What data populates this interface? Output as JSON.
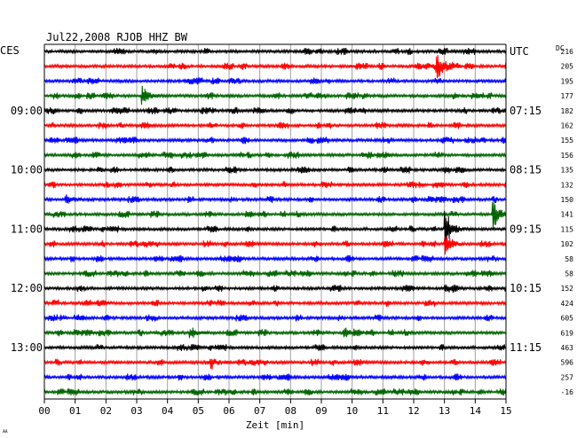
{
  "chart_data": {
    "type": "line",
    "title": "Jul22,2008   RJOB HHZ BW",
    "left_label": "CES",
    "right_label": "UTC",
    "dc_header": "DC",
    "xlabel": "Zeit [min]",
    "x_ticks": [
      "00",
      "01",
      "02",
      "03",
      "04",
      "05",
      "06",
      "07",
      "08",
      "09",
      "10",
      "11",
      "12",
      "13",
      "14",
      "15"
    ],
    "xlim": [
      0,
      15
    ],
    "left_time_labels": [
      {
        "row": 4,
        "label": "09:00"
      },
      {
        "row": 8,
        "label": "10:00"
      },
      {
        "row": 12,
        "label": "11:00"
      },
      {
        "row": 16,
        "label": "12:00"
      },
      {
        "row": 20,
        "label": "13:00"
      }
    ],
    "right_time_labels": [
      {
        "row": 0,
        "label": "UTC"
      },
      {
        "row": 4,
        "label": "07:15"
      },
      {
        "row": 8,
        "label": "08:15"
      },
      {
        "row": 12,
        "label": "09:15"
      },
      {
        "row": 16,
        "label": "10:15"
      },
      {
        "row": 20,
        "label": "11:15"
      }
    ],
    "dc_values": [
      "216",
      "205",
      "195",
      "177",
      "182",
      "162",
      "155",
      "156",
      "135",
      "132",
      "150",
      "141",
      "115",
      "102",
      "58",
      "58",
      "152",
      "424",
      "605",
      "619",
      "463",
      "596",
      "257",
      "-16"
    ],
    "trace_colors": [
      "#000000",
      "#ff0000",
      "#0000ff",
      "#006400"
    ],
    "events": [
      {
        "row": 1,
        "minute": 12.75,
        "amp": 14
      },
      {
        "row": 3,
        "minute": 3.2,
        "amp": 10
      },
      {
        "row": 10,
        "minute": 0.7,
        "amp": 6
      },
      {
        "row": 11,
        "minute": 14.6,
        "amp": 16
      },
      {
        "row": 12,
        "minute": 13.05,
        "amp": 22
      },
      {
        "row": 13,
        "minute": 13.05,
        "amp": 14
      },
      {
        "row": 16,
        "minute": 13.05,
        "amp": 6
      },
      {
        "row": 19,
        "minute": 4.75,
        "amp": 7
      },
      {
        "row": 19,
        "minute": 9.75,
        "amp": 6
      },
      {
        "row": 21,
        "minute": 5.45,
        "amp": 5
      }
    ],
    "grid": true
  },
  "footer_mark": "ㅆ"
}
